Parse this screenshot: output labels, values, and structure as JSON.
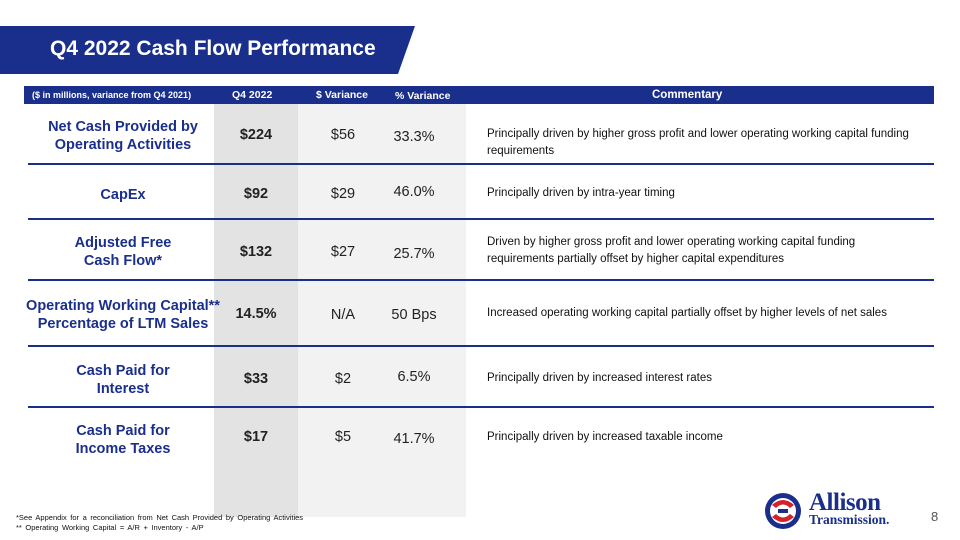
{
  "title": "Q4 2022 Cash Flow Performance",
  "header": {
    "units": "($ in millions, variance from Q4 2021)",
    "q4": "Q4 2022",
    "dollar_variance": "$ Variance",
    "pct_variance": "% Variance",
    "commentary": "Commentary"
  },
  "rows": [
    {
      "label": "Net Cash Provided by Operating Activities",
      "q4": "$224",
      "var": "$56",
      "pct": "33.3%",
      "commentary": "Principally driven by higher gross profit and lower operating working capital funding requirements"
    },
    {
      "label": "CapEx",
      "q4": "$92",
      "var": "$29",
      "pct": "46.0%",
      "commentary": "Principally driven by intra-year timing"
    },
    {
      "label": "Adjusted Free Cash Flow*",
      "q4": "$132",
      "var": "$27",
      "pct": "25.7%",
      "commentary": "Driven by higher gross profit and lower operating working capital funding requirements partially offset by higher capital expenditures"
    },
    {
      "label": "Operating Working Capital** Percentage of LTM Sales",
      "q4": "14.5%",
      "var": "N/A",
      "pct": "50 Bps",
      "commentary": "Increased operating working capital partially offset by higher levels of net sales"
    },
    {
      "label": "Cash Paid for Interest",
      "q4": "$33",
      "var": "$2",
      "pct": "6.5%",
      "commentary": "Principally driven by increased interest rates"
    },
    {
      "label": "Cash Paid for Income Taxes",
      "q4": "$17",
      "var": "$5",
      "pct": "41.7%",
      "commentary": "Principally driven by increased taxable income"
    }
  ],
  "footnotes": [
    "*See Appendix for a reconciliation from Net Cash Provided by Operating Activities",
    "** Operating Working Capital = A/R + Inventory - A/P"
  ],
  "logo": {
    "line1": "Allison",
    "line2": "Transmission."
  },
  "page_number": "8",
  "colors": {
    "brand_blue": "#1a2f8c",
    "accent_red": "#d2232a"
  }
}
